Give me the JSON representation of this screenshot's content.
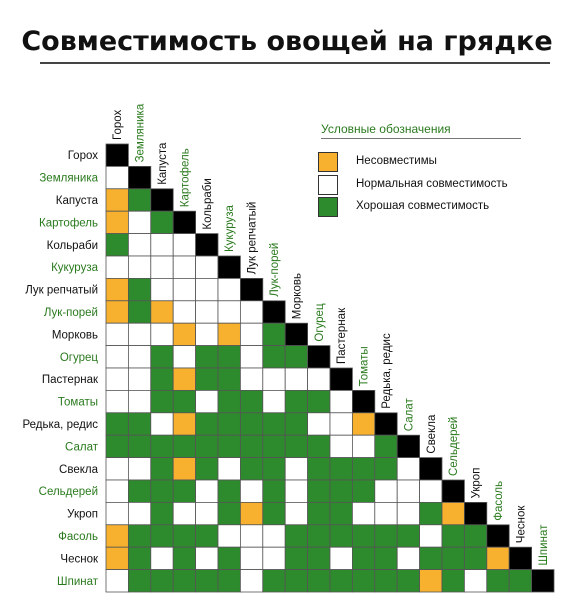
{
  "title": "Совместимость овощей на грядке",
  "legend": {
    "title": "Условные обозначения",
    "items": [
      {
        "key": "bad",
        "label": "Несовместимы",
        "color": "#f7b12e"
      },
      {
        "key": "neutral",
        "label": "Нормальная совместимость",
        "color": "#ffffff"
      },
      {
        "key": "good",
        "label": "Хорошая совместимость",
        "color": "#2d8a2d"
      }
    ]
  },
  "colors": {
    "bad": "#f7b12e",
    "neutral": "#ffffff",
    "good": "#2d8a2d",
    "diagonal": "#000000",
    "label_alt": "#2a7a1e",
    "label_main": "#111111"
  },
  "chart_data": {
    "type": "heatmap",
    "title": "Совместимость овощей на грядке",
    "categories": [
      "Горох",
      "Земляника",
      "Капуста",
      "Картофель",
      "Кольраби",
      "Кукуруза",
      "Лук репчатый",
      "Лук-порей",
      "Морковь",
      "Огурец",
      "Пастернак",
      "Томаты",
      "Редька, редис",
      "Салат",
      "Свекла",
      "Сельдерей",
      "Укроп",
      "Фасоль",
      "Чеснок",
      "Шпинат"
    ],
    "value_legend": {
      "0": "Нормальная совместимость",
      "1": "Хорошая совместимость",
      "-1": "Несовместимы"
    },
    "matrix_lower": [
      [],
      [
        0
      ],
      [
        -1,
        1
      ],
      [
        -1,
        0,
        1
      ],
      [
        1,
        0,
        0,
        0
      ],
      [
        0,
        0,
        0,
        0,
        0
      ],
      [
        -1,
        1,
        0,
        0,
        0,
        0
      ],
      [
        -1,
        1,
        -1,
        0,
        0,
        0,
        0
      ],
      [
        0,
        0,
        0,
        -1,
        0,
        -1,
        0,
        1
      ],
      [
        0,
        0,
        1,
        0,
        1,
        1,
        0,
        1,
        1
      ],
      [
        0,
        0,
        1,
        -1,
        1,
        1,
        0,
        0,
        0,
        0
      ],
      [
        0,
        0,
        1,
        1,
        0,
        1,
        1,
        0,
        1,
        1,
        0
      ],
      [
        1,
        1,
        0,
        -1,
        1,
        1,
        1,
        1,
        1,
        0,
        0,
        -1
      ],
      [
        1,
        1,
        1,
        1,
        1,
        1,
        1,
        1,
        1,
        1,
        0,
        0,
        1
      ],
      [
        0,
        0,
        1,
        -1,
        1,
        0,
        1,
        1,
        0,
        1,
        1,
        1,
        1,
        0
      ],
      [
        0,
        1,
        1,
        1,
        0,
        1,
        0,
        1,
        0,
        1,
        1,
        1,
        0,
        0,
        0
      ],
      [
        0,
        0,
        1,
        0,
        0,
        1,
        -1,
        1,
        0,
        1,
        1,
        0,
        0,
        0,
        1,
        -1
      ],
      [
        -1,
        1,
        1,
        1,
        1,
        0,
        0,
        0,
        1,
        1,
        1,
        1,
        1,
        1,
        0,
        1,
        1
      ],
      [
        -1,
        1,
        0,
        1,
        0,
        1,
        0,
        0,
        1,
        1,
        0,
        1,
        1,
        0,
        1,
        1,
        1,
        -1
      ],
      [
        0,
        1,
        1,
        1,
        1,
        1,
        0,
        1,
        1,
        1,
        1,
        1,
        1,
        1,
        -1,
        1,
        0,
        1,
        1
      ]
    ],
    "label_colors": [
      "main",
      "alt",
      "main",
      "alt",
      "main",
      "alt",
      "main",
      "alt",
      "main",
      "alt",
      "main",
      "alt",
      "main",
      "alt",
      "main",
      "alt",
      "main",
      "alt",
      "main",
      "alt"
    ]
  }
}
